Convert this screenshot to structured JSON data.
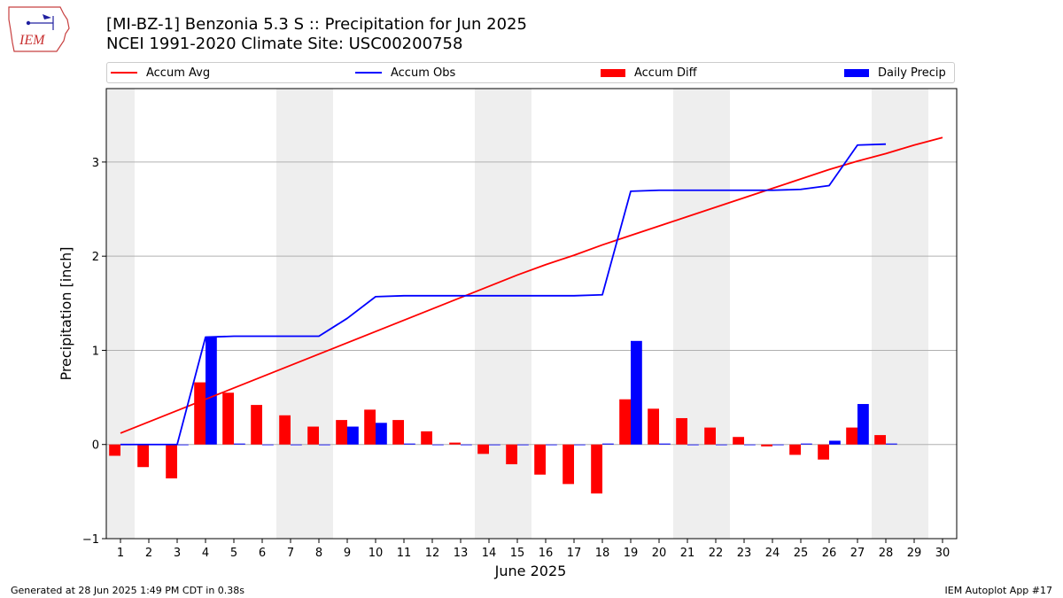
{
  "header": {
    "title_line1": "[MI-BZ-1] Benzonia 5.3 S :: Precipitation for Jun 2025",
    "title_line2": "NCEI 1991-2020 Climate Site: USC00200758",
    "logo_text": "IEM"
  },
  "legend": {
    "accum_avg": "Accum Avg",
    "accum_obs": "Accum Obs",
    "accum_diff": "Accum Diff",
    "daily_precip": "Daily Precip"
  },
  "footer": {
    "generated": "Generated at 28 Jun 2025 1:49 PM CDT in 0.38s",
    "app": "IEM Autoplot App #17"
  },
  "colors": {
    "accum_avg": "#ff0000",
    "accum_obs": "#0000ff",
    "accum_diff": "#ff0000",
    "daily_precip": "#0000ff",
    "weekend_shade": "#eeeeee",
    "grid": "#b0b0b0"
  },
  "chart_data": {
    "type": "bar",
    "xlabel": "June 2025",
    "ylabel": "Precipitation [inch]",
    "xlim": [
      0.5,
      30.5
    ],
    "ylim": [
      -1,
      3.78
    ],
    "yticks": [
      -1,
      0,
      1,
      2,
      3
    ],
    "grid": "y",
    "legend_position": "top",
    "shaded_days": [
      1,
      7,
      8,
      14,
      15,
      21,
      22,
      28,
      29
    ],
    "days": [
      1,
      2,
      3,
      4,
      5,
      6,
      7,
      8,
      9,
      10,
      11,
      12,
      13,
      14,
      15,
      16,
      17,
      18,
      19,
      20,
      21,
      22,
      23,
      24,
      25,
      26,
      27,
      28,
      29,
      30
    ],
    "series": [
      {
        "name": "Accum Avg",
        "kind": "line",
        "x": [
          1,
          2,
          3,
          4,
          5,
          6,
          7,
          8,
          9,
          10,
          11,
          12,
          13,
          14,
          15,
          16,
          17,
          18,
          19,
          20,
          21,
          22,
          23,
          24,
          25,
          26,
          27,
          28,
          29,
          30
        ],
        "values": [
          0.12,
          0.24,
          0.36,
          0.48,
          0.6,
          0.72,
          0.84,
          0.96,
          1.08,
          1.2,
          1.32,
          1.44,
          1.56,
          1.68,
          1.8,
          1.91,
          2.01,
          2.12,
          2.22,
          2.32,
          2.42,
          2.52,
          2.62,
          2.72,
          2.82,
          2.92,
          3.01,
          3.09,
          3.18,
          3.26
        ]
      },
      {
        "name": "Accum Obs",
        "kind": "line",
        "x": [
          1,
          2,
          3,
          4,
          5,
          6,
          7,
          8,
          9,
          10,
          11,
          12,
          13,
          14,
          15,
          16,
          17,
          18,
          19,
          20,
          21,
          22,
          23,
          24,
          25,
          26,
          27,
          28
        ],
        "values": [
          0.0,
          0.0,
          0.0,
          1.14,
          1.15,
          1.15,
          1.15,
          1.15,
          1.34,
          1.57,
          1.58,
          1.58,
          1.58,
          1.58,
          1.58,
          1.58,
          1.58,
          1.59,
          2.69,
          2.7,
          2.7,
          2.7,
          2.7,
          2.7,
          2.71,
          2.75,
          3.18,
          3.19
        ]
      },
      {
        "name": "Accum Diff",
        "kind": "bar",
        "x": [
          1,
          2,
          3,
          4,
          5,
          6,
          7,
          8,
          9,
          10,
          11,
          12,
          13,
          14,
          15,
          16,
          17,
          18,
          19,
          20,
          21,
          22,
          23,
          24,
          25,
          26,
          27,
          28
        ],
        "values": [
          -0.12,
          -0.24,
          -0.36,
          0.66,
          0.55,
          0.42,
          0.31,
          0.19,
          0.26,
          0.37,
          0.26,
          0.14,
          0.02,
          -0.1,
          -0.21,
          -0.32,
          -0.42,
          -0.52,
          0.48,
          0.38,
          0.28,
          0.18,
          0.08,
          -0.02,
          -0.11,
          -0.16,
          0.18,
          0.1
        ]
      },
      {
        "name": "Daily Precip",
        "kind": "bar",
        "x": [
          1,
          2,
          3,
          4,
          5,
          6,
          7,
          8,
          9,
          10,
          11,
          12,
          13,
          14,
          15,
          16,
          17,
          18,
          19,
          20,
          21,
          22,
          23,
          24,
          25,
          26,
          27,
          28
        ],
        "values": [
          0,
          0,
          0,
          1.14,
          0.01,
          0,
          0,
          0,
          0.19,
          0.23,
          0.01,
          0,
          0,
          0,
          0,
          0,
          0,
          0.01,
          1.1,
          0.01,
          0,
          0,
          0,
          0,
          0.01,
          0.04,
          0.43,
          0.01
        ]
      }
    ]
  }
}
